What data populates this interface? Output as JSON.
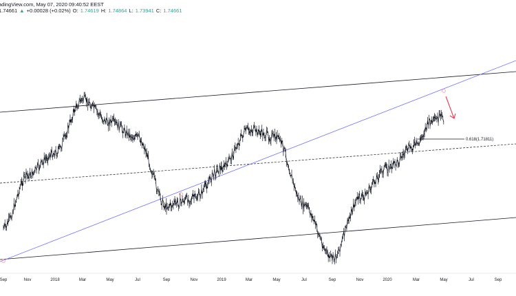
{
  "header": {
    "source_line": "adingView.com, May 07, 2020 09:40:52 EEST",
    "last": "1.74661",
    "change_arrow": "▲",
    "change": "+0.00028 (+0.02%)",
    "o_label": "O:",
    "o_value": "1.74619",
    "h_label": "H:",
    "h_value": "1.74864",
    "l_label": "L:",
    "l_value": "1.73941",
    "c_label": "C:",
    "c_value": "1.74661"
  },
  "chart_data": {
    "type": "line",
    "title": "",
    "xlabel": "",
    "ylabel": "",
    "x_ticks": [
      "Sep",
      "Nov",
      "2018",
      "Mar",
      "May",
      "Jul",
      "Sep",
      "Nov",
      "2019",
      "Mar",
      "May",
      "Jul",
      "Sep",
      "Nov",
      "2020",
      "Mar",
      "May",
      "Jul",
      "Sep"
    ],
    "grid": false,
    "legend": "none",
    "approx_price_path": [
      [
        "2017-09",
        1.6
      ],
      [
        "2017-11",
        1.67
      ],
      [
        "2018-01",
        1.7
      ],
      [
        "2018-03",
        1.77
      ],
      [
        "2018-05",
        1.74
      ],
      [
        "2018-07",
        1.72
      ],
      [
        "2018-09",
        1.63
      ],
      [
        "2018-11",
        1.64
      ],
      [
        "2019-01",
        1.68
      ],
      [
        "2019-03",
        1.73
      ],
      [
        "2019-05",
        1.72
      ],
      [
        "2019-07",
        1.63
      ],
      [
        "2019-09",
        1.56
      ],
      [
        "2019-11",
        1.64
      ],
      [
        "2020-01",
        1.68
      ],
      [
        "2020-03",
        1.71
      ],
      [
        "2020-04",
        1.74
      ],
      [
        "2020-05",
        1.7466
      ]
    ],
    "annotations": [
      {
        "type": "fibonacci_level",
        "label": "0.618(1.71811)",
        "value": 1.71811
      }
    ],
    "colors": {
      "price": "#131722",
      "channel": "#131722",
      "trendline": "#6e72ff",
      "marker": "#f4a8b4",
      "arrow": "#e8384f"
    }
  }
}
